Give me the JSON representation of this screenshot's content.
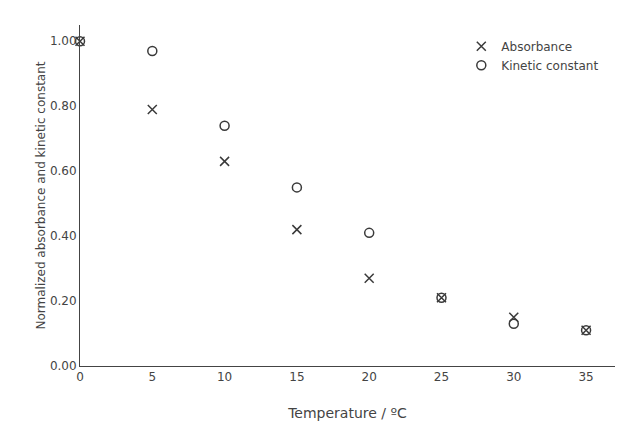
{
  "chart_data": {
    "type": "scatter",
    "x_label": "Temperature / ºC",
    "y_label": "Normalized absorbance and kinetic constant",
    "x": [
      0,
      5,
      10,
      15,
      20,
      25,
      30,
      35
    ],
    "series": [
      {
        "name": "Absorbance",
        "color": "#3a3a3a",
        "marker": "x",
        "values": [
          1.0,
          0.79,
          0.63,
          0.42,
          0.27,
          0.21,
          0.15,
          0.11
        ]
      },
      {
        "name": "Kinetic constant",
        "color": "#3a3a3a",
        "marker": "circle-open",
        "values": [
          1.0,
          0.97,
          0.74,
          0.55,
          0.41,
          0.21,
          0.13,
          0.11
        ]
      }
    ],
    "xlim": [
      0,
      37
    ],
    "ylim": [
      0.0,
      1.05
    ],
    "xticks": [
      0,
      5,
      10,
      15,
      20,
      25,
      30,
      35
    ],
    "yticks": [
      {
        "value": 0.0,
        "label": "0.00"
      },
      {
        "value": 0.2,
        "label": "0.20"
      },
      {
        "value": 0.4,
        "label": "0.40"
      },
      {
        "value": 0.6,
        "label": "0.60"
      },
      {
        "value": 0.8,
        "label": "0.80"
      },
      {
        "value": 1.0,
        "label": "1.00"
      }
    ],
    "grid": false,
    "legend": "upper right"
  }
}
